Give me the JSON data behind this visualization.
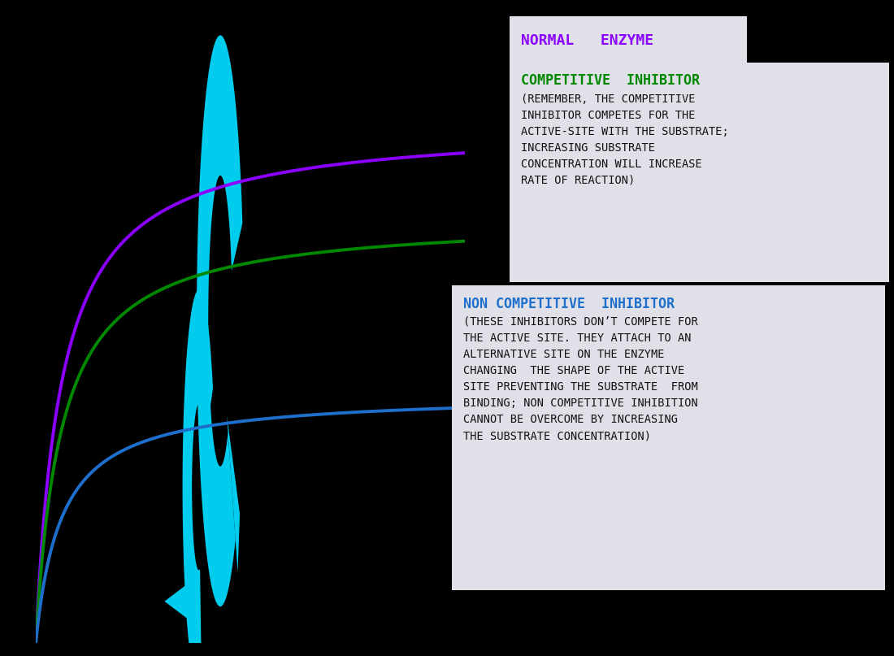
{
  "background_color": "#000000",
  "normal_enzyme_color": "#8B00FF",
  "competitive_inhibitor_color": "#008800",
  "non_competitive_inhibitor_color": "#1E6FCC",
  "arrow_color": "#00CCEE",
  "label_box_color": "#E0E0E8",
  "normal_enzyme_label": "NORMAL   ENZYME",
  "normal_enzyme_label_color": "#8B00FF",
  "competitive_label_title": "COMPETITIVE  INHIBITOR",
  "competitive_label_title_color": "#008800",
  "competitive_label_body": "(REMEMBER, THE COMPETITIVE\nINHIBITOR COMPETES FOR THE\nACTIVE-SITE WITH THE SUBSTRATE;\nINCREASING SUBSTRATE\nCONCENTRATION WILL INCREASE\nRATE OF REACTION)",
  "non_competitive_label_title": "NON COMPETITIVE  INHIBITOR",
  "non_competitive_label_title_color": "#1E6FCC",
  "non_competitive_label_body": "(THESE INHIBITORS DON’T COMPETE FOR\nTHE ACTIVE SITE. THEY ATTACH TO AN\nALTERNATIVE SITE ON THE ENZYME\nCHANGING  THE SHAPE OF THE ACTIVE\nSITE PREVENTING THE SUBSTRATE  FROM\nBINDING; NON COMPETITIVE INHIBITION\nCANNOT BE OVERCOME BY INCREASING\nTHE SUBSTRATE CONCENTRATION)",
  "label_text_color": "#111111",
  "font_family": "monospace"
}
